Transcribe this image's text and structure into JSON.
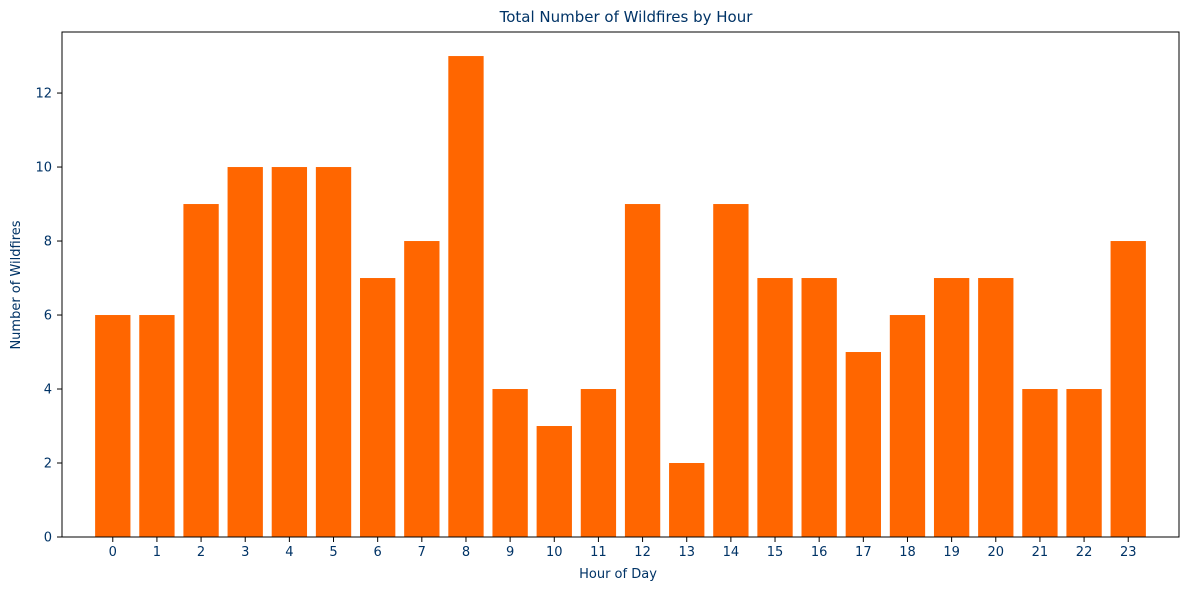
{
  "chart_data": {
    "type": "bar",
    "title": "Total Number of Wildfires by Hour",
    "xlabel": "Hour of Day",
    "ylabel": "Number of Wildfires",
    "categories": [
      "0",
      "1",
      "2",
      "3",
      "4",
      "5",
      "6",
      "7",
      "8",
      "9",
      "10",
      "11",
      "12",
      "13",
      "14",
      "15",
      "16",
      "17",
      "18",
      "19",
      "20",
      "21",
      "22",
      "23"
    ],
    "values": [
      6,
      6,
      9,
      10,
      10,
      10,
      7,
      8,
      13,
      4,
      3,
      4,
      9,
      2,
      9,
      7,
      7,
      5,
      6,
      7,
      7,
      4,
      4,
      8
    ],
    "ylim": [
      0,
      13.65
    ],
    "yticks": [
      0,
      2,
      4,
      6,
      8,
      10,
      12
    ],
    "grid": false,
    "legend": "none",
    "colors": {
      "bar": "#ff6600",
      "text": "#003366",
      "axis": "#000000"
    }
  }
}
